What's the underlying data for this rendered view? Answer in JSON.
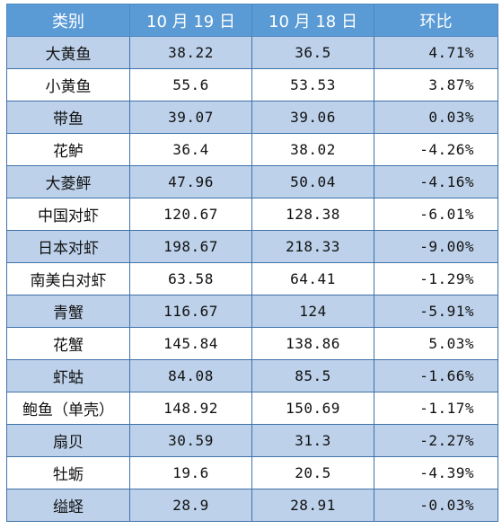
{
  "table": {
    "headers": [
      "类别",
      "10 月 19 日",
      "10 月 18 日",
      "环比"
    ],
    "rows": [
      {
        "name": "大黄鱼",
        "oct19": "38.22",
        "oct18": "36.5",
        "change": "4.71%"
      },
      {
        "name": "小黄鱼",
        "oct19": "55.6",
        "oct18": "53.53",
        "change": "3.87%"
      },
      {
        "name": "带鱼",
        "oct19": "39.07",
        "oct18": "39.06",
        "change": "0.03%"
      },
      {
        "name": "花鲈",
        "oct19": "36.4",
        "oct18": "38.02",
        "change": "-4.26%"
      },
      {
        "name": "大菱鲆",
        "oct19": "47.96",
        "oct18": "50.04",
        "change": "-4.16%"
      },
      {
        "name": "中国对虾",
        "oct19": "120.67",
        "oct18": "128.38",
        "change": "-6.01%"
      },
      {
        "name": "日本对虾",
        "oct19": "198.67",
        "oct18": "218.33",
        "change": "-9.00%"
      },
      {
        "name": "南美白对虾",
        "oct19": "63.58",
        "oct18": "64.41",
        "change": "-1.29%"
      },
      {
        "name": "青蟹",
        "oct19": "116.67",
        "oct18": "124",
        "change": "-5.91%"
      },
      {
        "name": "花蟹",
        "oct19": "145.84",
        "oct18": "138.86",
        "change": "5.03%"
      },
      {
        "name": "虾蛄",
        "oct19": "84.08",
        "oct18": "85.5",
        "change": "-1.66%"
      },
      {
        "name": "鲍鱼（单壳）",
        "oct19": "148.92",
        "oct18": "150.69",
        "change": "-1.17%"
      },
      {
        "name": "扇贝",
        "oct19": "30.59",
        "oct18": "31.3",
        "change": "-2.27%"
      },
      {
        "name": "牡蛎",
        "oct19": "19.6",
        "oct18": "20.5",
        "change": "-4.39%"
      },
      {
        "name": "缢蛏",
        "oct19": "28.9",
        "oct18": "28.91",
        "change": "-0.03%"
      }
    ]
  },
  "colors": {
    "header_bg": "#5b9bd5",
    "row_shade": "#bdd1ea",
    "row_plain": "#ffffff",
    "border": "#3e72a8"
  }
}
